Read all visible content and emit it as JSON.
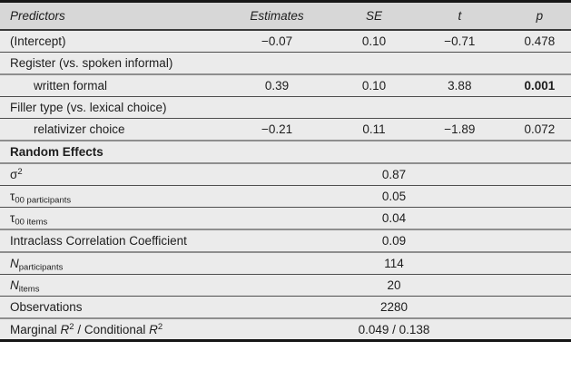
{
  "colors": {
    "header_bg": "#d7d7d7",
    "body_bg": "#ebebeb"
  },
  "table": {
    "columns": {
      "predictors": "Predictors",
      "estimates": "Estimates",
      "se": "SE",
      "t": "t",
      "p": "p"
    },
    "fixed_effects": {
      "intercept": {
        "label": "(Intercept)",
        "estimate": "−0.07",
        "se": "0.10",
        "t": "−0.71",
        "p": "0.478"
      },
      "register_group": {
        "label": "Register (vs. spoken informal)"
      },
      "written_formal": {
        "label": "written formal",
        "estimate": "0.39",
        "se": "0.10",
        "t": "3.88",
        "p": "0.001"
      },
      "filler_group": {
        "label": "Filler type (vs. lexical choice)"
      },
      "relativizer_choice": {
        "label": "relativizer choice",
        "estimate": "−0.21",
        "se": "0.11",
        "t": "−1.89",
        "p": "0.072"
      }
    },
    "random_effects": {
      "section_label": "Random Effects",
      "sigma2": {
        "label_html": "σ<sup>2</sup>",
        "value": "0.87"
      },
      "tau00_participants": {
        "label_html": "τ<sub>00&nbsp;participants</sub>",
        "value": "0.05"
      },
      "tau00_items": {
        "label_html": "τ<sub>00&nbsp;items</sub>",
        "value": "0.04"
      },
      "icc": {
        "label_html": "Intraclass Correlation Coefficient",
        "value": "0.09"
      },
      "n_participants": {
        "label_html": "<i>N</i><sub>participants</sub>",
        "value": "114"
      },
      "n_items": {
        "label_html": "<i>N</i><sub>items</sub>",
        "value": "20"
      },
      "observations": {
        "label_html": "Observations",
        "value": "2280"
      },
      "r2": {
        "label_html": "Marginal <i>R</i><sup>2</sup> / Conditional <i>R</i><sup>2</sup>",
        "value": "0.049 / 0.138"
      }
    }
  }
}
